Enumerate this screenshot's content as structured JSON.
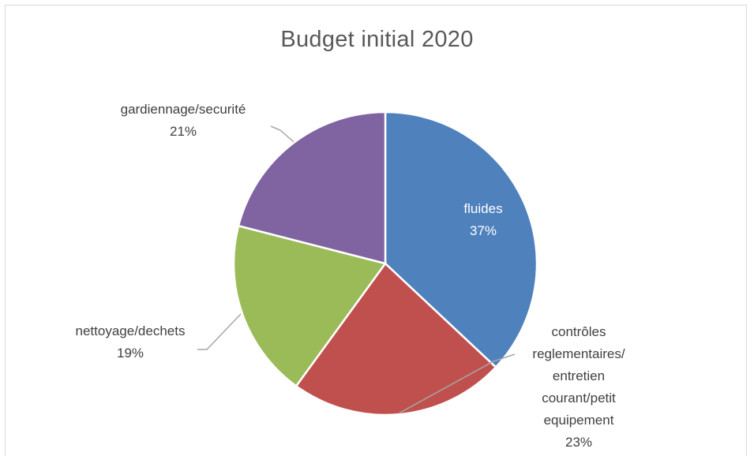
{
  "chart_data": {
    "type": "pie",
    "title": "Budget initial 2020",
    "slices": [
      {
        "label": "fluides",
        "percent_label": "37%",
        "value": 37,
        "color": "#4f81bd"
      },
      {
        "label": "contrôles reglementaires/ entretien courant/petit equipement",
        "percent_label": "23%",
        "value": 23,
        "color": "#c0504d"
      },
      {
        "label": "nettoyage/dechets",
        "percent_label": "19%",
        "value": 19,
        "color": "#9bbb59"
      },
      {
        "label": "gardiennage/securité",
        "percent_label": "21%",
        "value": 21,
        "color": "#8064a2"
      }
    ],
    "label_lines": {
      "controles": [
        "contrôles",
        "reglementaires/",
        "entretien",
        "courant/petit",
        "equipement"
      ]
    }
  }
}
